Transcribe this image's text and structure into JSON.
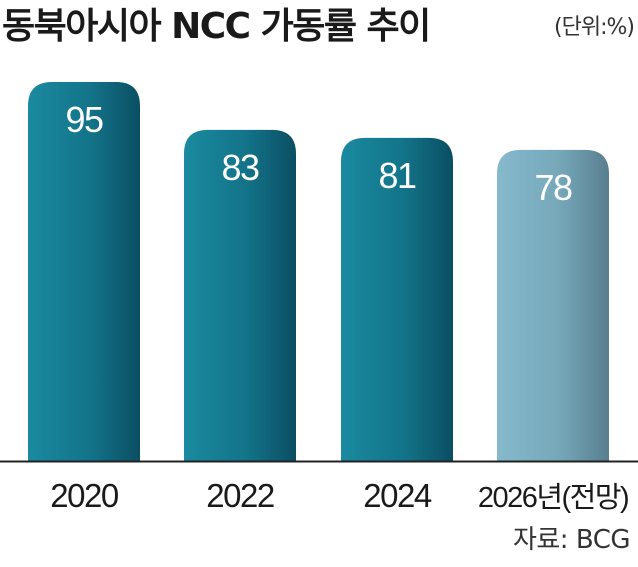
{
  "title": "동북아시아 NCC 가동률 추이",
  "unit_note": "(단위:%)",
  "source": "자료: BCG",
  "colors": {
    "bar_actual": "#157a90",
    "bar_forecast": "#7ab0c3",
    "baseline": "#222222",
    "value_text": "#ffffff"
  },
  "chart_data": {
    "type": "bar",
    "categories": [
      "2020",
      "2022",
      "2024",
      "2026년(전망)"
    ],
    "values": [
      95,
      83,
      81,
      78
    ],
    "forecast": [
      false,
      false,
      false,
      true
    ],
    "title": "동북아시아 NCC 가동률 추이",
    "xlabel": "",
    "ylabel": "",
    "unit": "%",
    "grid": false
  }
}
